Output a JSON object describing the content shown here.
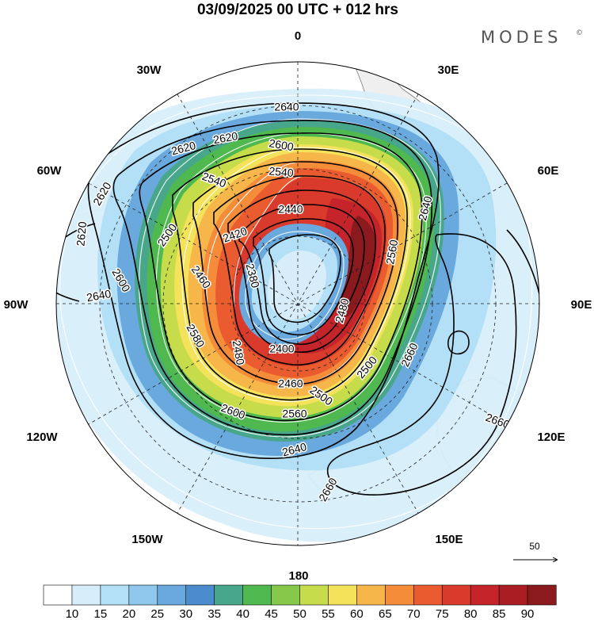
{
  "header": {
    "title": "03/09/2025  00 UTC  + 012 hrs",
    "brand": "MODES",
    "brand_mark": "©"
  },
  "map": {
    "projection": "south-polar-stereographic",
    "longitude_labels": [
      "0",
      "30E",
      "60E",
      "90E",
      "120E",
      "150E",
      "180",
      "150W",
      "120W",
      "90W",
      "60W",
      "30W"
    ],
    "contour_labels": [
      {
        "text": "2640",
        "rot": 0
      },
      {
        "text": "2620",
        "rot": -15
      },
      {
        "text": "2620",
        "rot": -10
      },
      {
        "text": "2600",
        "rot": 10
      },
      {
        "text": "2540",
        "rot": 5
      },
      {
        "text": "2540",
        "rot": 20
      },
      {
        "text": "2440",
        "rot": 0
      },
      {
        "text": "2420",
        "rot": -20
      },
      {
        "text": "2500",
        "rot": -55
      },
      {
        "text": "2620",
        "rot": -60
      },
      {
        "text": "2620",
        "rot": -85
      },
      {
        "text": "2600",
        "rot": 60
      },
      {
        "text": "2460",
        "rot": 55
      },
      {
        "text": "2380",
        "rot": 75
      },
      {
        "text": "2640",
        "rot": -10
      },
      {
        "text": "2580",
        "rot": 60
      },
      {
        "text": "2480",
        "rot": 80
      },
      {
        "text": "2400",
        "rot": 0
      },
      {
        "text": "2460",
        "rot": 0
      },
      {
        "text": "2500",
        "rot": 35
      },
      {
        "text": "2560",
        "rot": 0
      },
      {
        "text": "2600",
        "rot": 20
      },
      {
        "text": "2640",
        "rot": -15
      },
      {
        "text": "2640",
        "rot": -75
      },
      {
        "text": "2560",
        "rot": -80
      },
      {
        "text": "2480",
        "rot": -75
      },
      {
        "text": "2500",
        "rot": -50
      },
      {
        "text": "2660",
        "rot": -65
      },
      {
        "text": "2660",
        "rot": -60
      },
      {
        "text": "2660",
        "rot": 20
      }
    ],
    "reference_vector": {
      "label": "50"
    }
  },
  "colorbar": {
    "ticks": [
      "10",
      "15",
      "20",
      "25",
      "30",
      "35",
      "40",
      "45",
      "50",
      "55",
      "60",
      "65",
      "70",
      "75",
      "80",
      "85",
      "90"
    ],
    "colors": [
      "#ffffff",
      "#d7eefa",
      "#b3e0f6",
      "#8fc8ec",
      "#69a9de",
      "#4a8ccc",
      "#48a68a",
      "#4fb94f",
      "#86c94a",
      "#c6dc4b",
      "#f3e25a",
      "#f7b649",
      "#f48c3a",
      "#ea5b2f",
      "#d93a2b",
      "#c4242a",
      "#a91d23",
      "#8b1a1e"
    ]
  }
}
